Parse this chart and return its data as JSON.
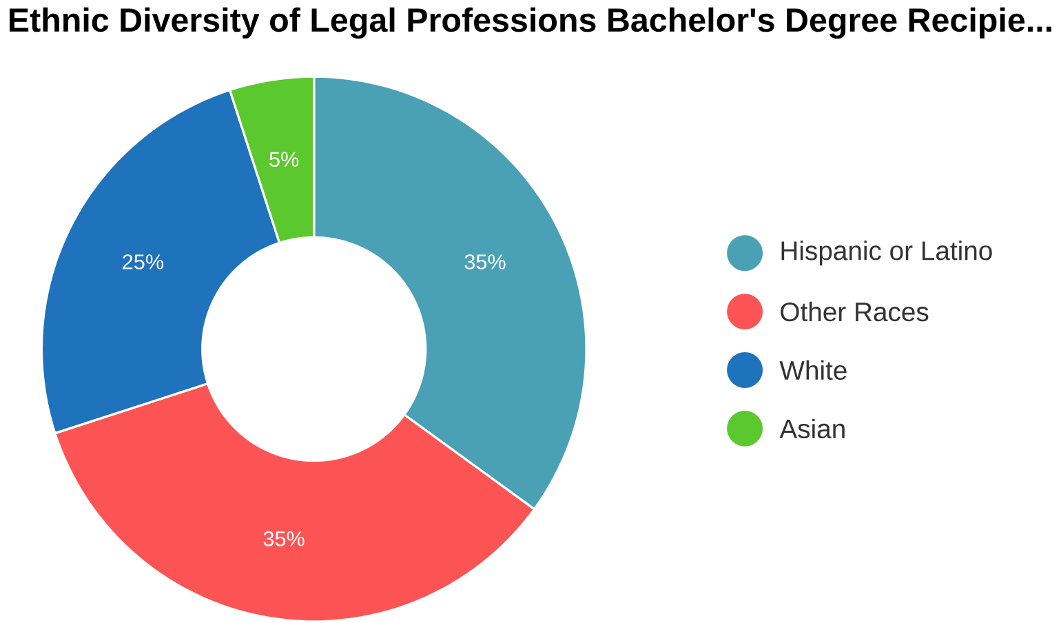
{
  "chart_data": {
    "type": "donut",
    "title": "Ethnic Diversity of Legal Professions Bachelor's Degree Recipie...",
    "categories": [
      "Hispanic or Latino",
      "Other Races",
      "White",
      "Asian"
    ],
    "values": [
      35,
      35,
      25,
      5
    ],
    "colors": [
      "#4aa1b5",
      "#fc5454",
      "#1f72bc",
      "#5bc92e"
    ],
    "value_labels": [
      "35%",
      "35%",
      "25%",
      "5%"
    ],
    "legend": "right"
  }
}
